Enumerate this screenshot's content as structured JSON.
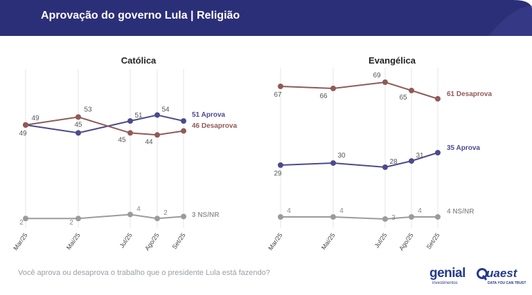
{
  "header": {
    "title": "Aprovação do governo Lula | Religião"
  },
  "footer": {
    "question": "Você aprova ou desaprova o trabalho que o presidente Lula está fazendo?"
  },
  "logos": {
    "genial": {
      "name": "genial",
      "sub": "investimentos"
    },
    "quaest": {
      "name": "uaest",
      "sub": "DATA YOU CAN TRUST"
    }
  },
  "colors": {
    "header_bg": "#2b2f77",
    "approve": "#4b4a8c",
    "disapprove": "#8f5a57",
    "nsnr": "#9b9b9b",
    "grid": "#e6e6e6"
  },
  "chart_data": [
    {
      "type": "line",
      "title": "Católica",
      "categories": [
        "Mar/25",
        "Mai/25",
        "Jul/25",
        "Ago/25",
        "Set/25"
      ],
      "series": [
        {
          "name": "Aprova",
          "key": "approve",
          "values": [
            49,
            45,
            51,
            54,
            51
          ],
          "end_label": "51 Aprova"
        },
        {
          "name": "Desaprova",
          "key": "disapprove",
          "values": [
            49,
            53,
            45,
            44,
            46
          ],
          "end_label": "46 Desaprova"
        },
        {
          "name": "NS/NR",
          "key": "nsnr",
          "values": [
            2,
            2,
            4,
            2,
            3
          ],
          "end_label": "3 NS/NR"
        }
      ],
      "grid": "vertical"
    },
    {
      "type": "line",
      "title": "Evangélica",
      "categories": [
        "Mar/25",
        "Mai/25",
        "Jul/25",
        "Ago/25",
        "Set/25"
      ],
      "series": [
        {
          "name": "Desaprova",
          "key": "disapprove",
          "values": [
            67,
            66,
            69,
            65,
            61
          ],
          "end_label": "61 Desaprova"
        },
        {
          "name": "Aprova",
          "key": "approve",
          "values": [
            29,
            30,
            28,
            31,
            35
          ],
          "end_label": "35 Aprova"
        },
        {
          "name": "NS/NR",
          "key": "nsnr",
          "values": [
            4,
            4,
            3,
            4,
            4
          ],
          "end_label": "4 NS/NR"
        }
      ],
      "grid": "vertical"
    }
  ]
}
